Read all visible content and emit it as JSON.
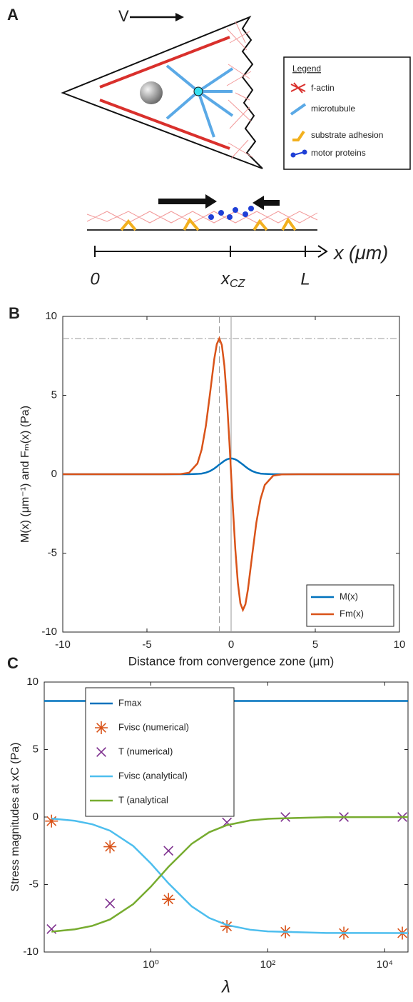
{
  "diagram": {
    "panel_label": "A",
    "velocity": "V",
    "legend": {
      "title": "Legend",
      "items": [
        "f-actin",
        "microtubule",
        "substrate adhesion",
        "motor proteins"
      ]
    },
    "axis": {
      "origin": "0",
      "convergence": "x",
      "convergence_sub": "CZ",
      "end": "L",
      "label": "x (μm)"
    }
  },
  "chart_data": [
    {
      "type": "line",
      "panel_label": "B",
      "xlabel": "Distance from convergence zone (μm)",
      "ylabel": "M(x) (μm⁻¹) and Fₘ(x) (Pa)",
      "xlim": [
        -10,
        10
      ],
      "xticks": [
        -10,
        -5,
        0,
        5,
        10
      ],
      "ylim": [
        -10,
        10
      ],
      "yticks": [
        -10,
        -5,
        0,
        5,
        10
      ],
      "hlines": [
        8.6
      ],
      "vlines": [
        {
          "value": -0.7,
          "style": "dashed"
        },
        {
          "value": 0,
          "style": "solid"
        }
      ],
      "legend": "lower right",
      "x": [
        -10,
        -4,
        -3,
        -2.5,
        -2,
        -1.75,
        -1.5,
        -1.25,
        -1,
        -0.85,
        -0.7,
        -0.55,
        -0.4,
        -0.25,
        -0.1,
        0,
        0.1,
        0.25,
        0.4,
        0.55,
        0.7,
        0.85,
        1,
        1.25,
        1.5,
        1.75,
        2,
        2.5,
        3,
        4,
        10
      ],
      "series": [
        {
          "name": "M(x)",
          "color": "#0072bd",
          "values": [
            0,
            0,
            0,
            0,
            0.02,
            0.04,
            0.1,
            0.2,
            0.36,
            0.48,
            0.61,
            0.73,
            0.85,
            0.94,
            0.99,
            1,
            0.99,
            0.94,
            0.85,
            0.73,
            0.61,
            0.48,
            0.36,
            0.2,
            0.1,
            0.04,
            0.02,
            0,
            0,
            0,
            0
          ]
        },
        {
          "name": "Fm(x)",
          "color": "#d95319",
          "values": [
            0,
            0,
            0.01,
            0.09,
            0.68,
            1.56,
            3.06,
            5.14,
            7.3,
            8.24,
            8.6,
            8.18,
            6.88,
            4.75,
            2,
            0,
            -2,
            -4.75,
            -6.88,
            -8.18,
            -8.6,
            -8.24,
            -7.3,
            -5.14,
            -3.06,
            -1.56,
            -0.68,
            -0.09,
            -0.01,
            0,
            0
          ]
        }
      ]
    },
    {
      "type": "line",
      "panel_label": "C",
      "xlabel": "λ",
      "ylabel": "Stress magnitudes at xC (Pa)",
      "xscale": "log",
      "xlim": [
        0.015,
        25000
      ],
      "xticks": [
        {
          "value": 1,
          "label": "10⁰"
        },
        {
          "value": 100,
          "label": "10²"
        },
        {
          "value": 10000,
          "label": "10⁴"
        }
      ],
      "ylim": [
        -10,
        10
      ],
      "yticks": [
        -10,
        -5,
        0,
        5,
        10
      ],
      "legend": "upper left",
      "series": [
        {
          "name": "Fmax",
          "color": "#0072bd",
          "x": [
            0.015,
            25000
          ],
          "values": [
            8.6,
            8.6
          ]
        },
        {
          "name": "Fvisc (numerical)",
          "color": "#d95319",
          "marker": "asterisk",
          "x": [
            0.02,
            0.2,
            2,
            20,
            200,
            2000,
            20000
          ],
          "values": [
            -0.3,
            -2.2,
            -6.1,
            -8.1,
            -8.5,
            -8.6,
            -8.6
          ]
        },
        {
          "name": "T (numerical)",
          "color": "#7e2f8e",
          "marker": "x",
          "x": [
            0.02,
            0.2,
            2,
            20,
            200,
            2000,
            20000
          ],
          "values": [
            -8.3,
            -6.4,
            -2.5,
            -0.4,
            0,
            0,
            0
          ]
        },
        {
          "name": "Fvisc (analytical)",
          "color": "#4dbeee",
          "x": [
            0.02,
            0.05,
            0.1,
            0.2,
            0.5,
            1,
            2,
            5,
            10,
            20,
            50,
            100,
            1000,
            25000
          ],
          "values": [
            -0.11,
            -0.28,
            -0.54,
            -1.01,
            -2.15,
            -3.44,
            -4.91,
            -6.62,
            -7.48,
            -8,
            -8.35,
            -8.47,
            -8.59,
            -8.6
          ]
        },
        {
          "name": "T (analytical",
          "color": "#77ac30",
          "x": [
            0.02,
            0.05,
            0.1,
            0.2,
            0.5,
            1,
            2,
            5,
            10,
            20,
            50,
            100,
            1000,
            25000
          ],
          "values": [
            -8.49,
            -8.32,
            -8.06,
            -7.59,
            -6.45,
            -5.16,
            -3.69,
            -1.98,
            -1.12,
            -0.6,
            -0.25,
            -0.13,
            -0.01,
            0
          ]
        }
      ]
    }
  ]
}
